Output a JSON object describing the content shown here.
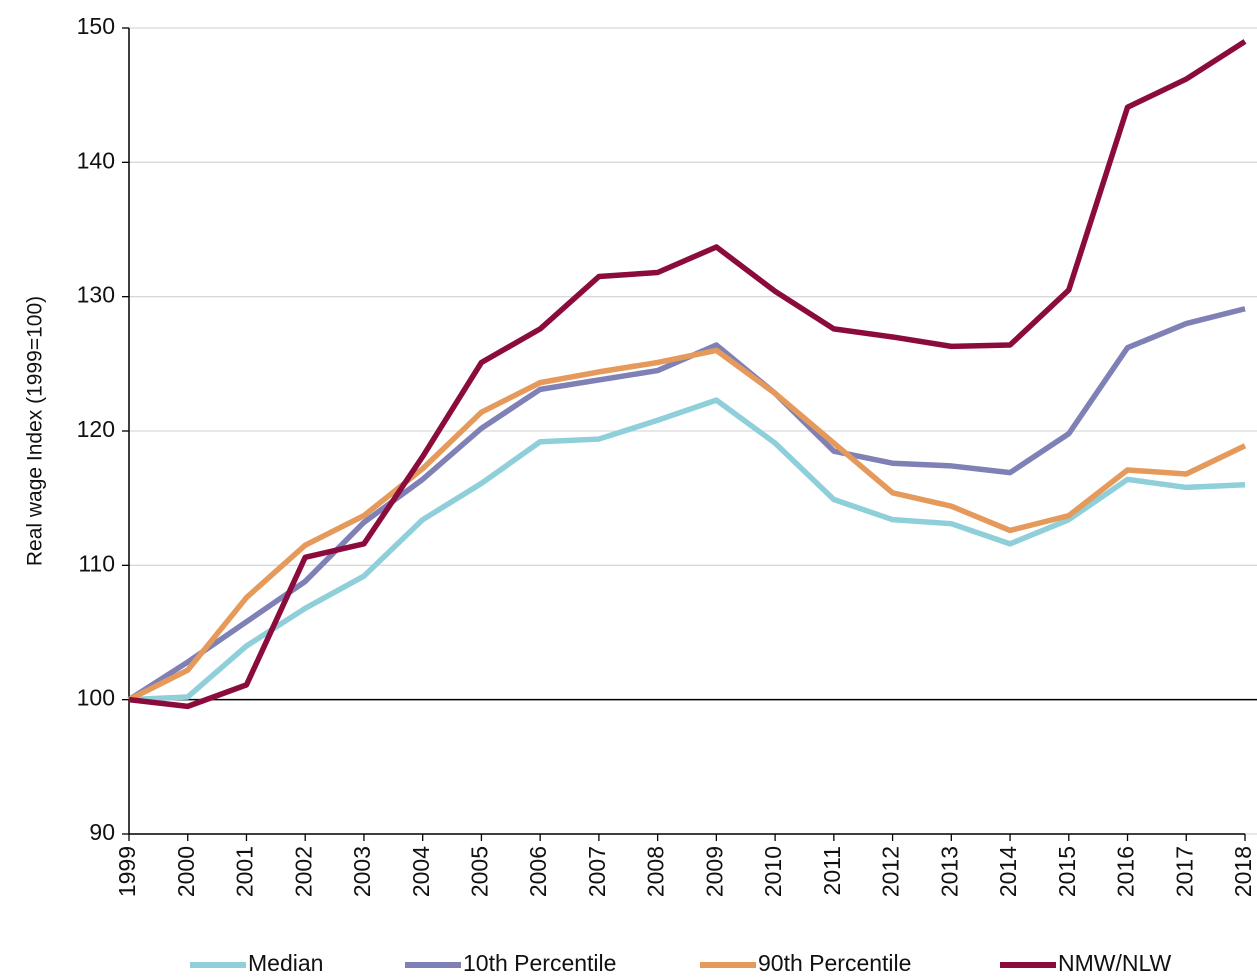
{
  "chart_data": {
    "type": "line",
    "y_label": "Real wage Index (1999=100)",
    "categories": [
      "1999",
      "2000",
      "2001",
      "2002",
      "2003",
      "2004",
      "2005",
      "2006",
      "2007",
      "2008",
      "2009",
      "2010",
      "2011",
      "2012",
      "2013",
      "2014",
      "2015",
      "2016",
      "2017",
      "2018"
    ],
    "series": [
      {
        "name": "Median",
        "color": "#8ecfd9",
        "values": [
          100,
          100.2,
          104,
          106.8,
          109.2,
          113.4,
          116.1,
          119.2,
          119.4,
          120.8,
          122.3,
          119.1,
          114.9,
          113.4,
          113.1,
          111.6,
          113.4,
          116.4,
          115.8,
          116.0
        ]
      },
      {
        "name": "10th Percentile",
        "color": "#7f80b5",
        "values": [
          100,
          102.8,
          105.8,
          108.8,
          113.2,
          116.4,
          120.2,
          123.1,
          123.8,
          124.5,
          126.4,
          122.8,
          118.5,
          117.6,
          117.4,
          116.9,
          119.8,
          126.2,
          128.0,
          129.1
        ]
      },
      {
        "name": "90th Percentile",
        "color": "#e59a5c",
        "values": [
          100,
          102.2,
          107.6,
          111.5,
          113.7,
          117.2,
          121.4,
          123.6,
          124.4,
          125.1,
          126.0,
          122.8,
          119.1,
          115.4,
          114.4,
          112.6,
          113.7,
          117.1,
          116.8,
          118.9
        ]
      },
      {
        "name": "NMW/NLW",
        "color": "#8b0c3c",
        "values": [
          100,
          99.5,
          101.1,
          110.6,
          111.6,
          118.1,
          125.1,
          127.6,
          131.5,
          131.8,
          133.7,
          130.4,
          127.6,
          127.0,
          126.3,
          126.4,
          130.5,
          144.1,
          146.2,
          149.0
        ]
      }
    ],
    "ylim": [
      90,
      150
    ],
    "yticks": [
      90,
      100,
      110,
      120,
      130,
      140,
      150
    ],
    "grid": true,
    "baseline": 100,
    "legend": "bottom"
  }
}
